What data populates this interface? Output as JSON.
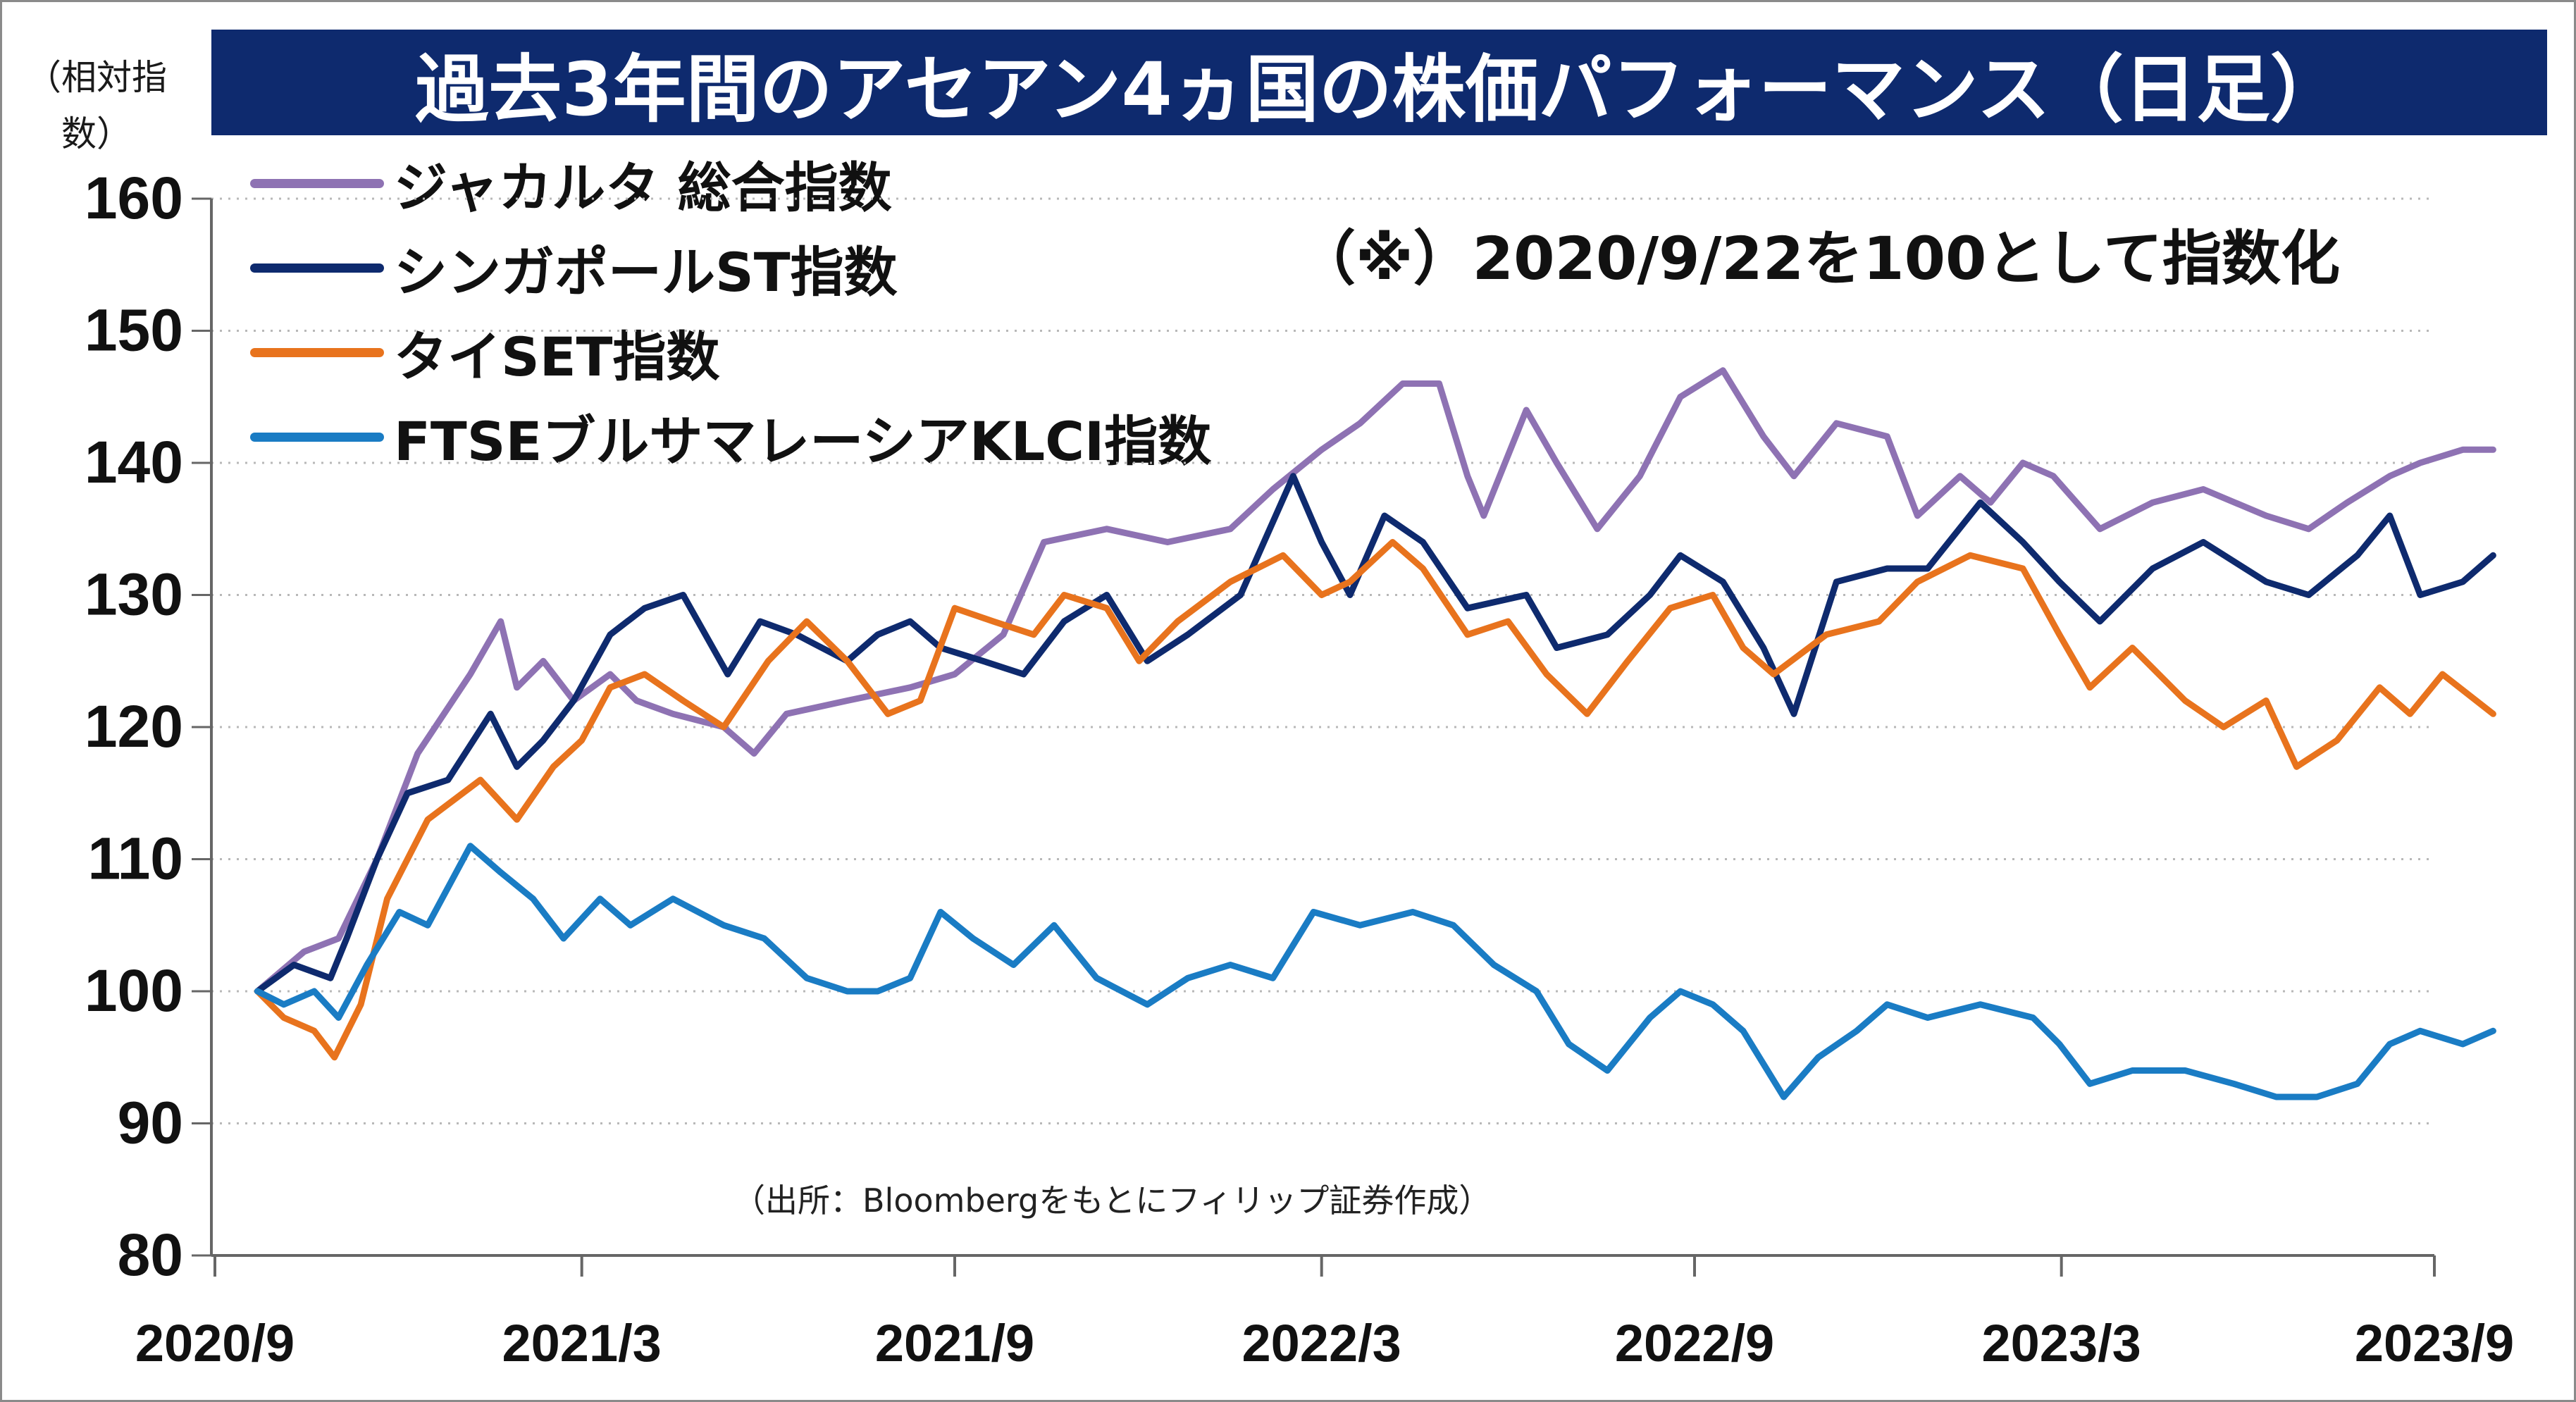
{
  "chart_data": {
    "type": "line",
    "title": "過去3年間のアセアン4ヵ国の株価パフォーマンス（日足）",
    "ylabel": "（相対指数）",
    "xlabel": "",
    "note": "（※）2020/9/22を100として指数化",
    "source": "（出所：Bloombergをもとにフィリップ証券作成）",
    "ylim": [
      80,
      160
    ],
    "yticks": [
      80,
      90,
      100,
      110,
      120,
      130,
      140,
      150,
      160
    ],
    "xlim": [
      "2020-09-22",
      "2023-09-30"
    ],
    "xticks": [
      {
        "date": "2020-09-01",
        "label": "2020/9"
      },
      {
        "date": "2021-03-01",
        "label": "2021/3"
      },
      {
        "date": "2021-09-01",
        "label": "2021/9"
      },
      {
        "date": "2022-03-01",
        "label": "2022/3"
      },
      {
        "date": "2022-09-01",
        "label": "2022/9"
      },
      {
        "date": "2023-03-01",
        "label": "2023/3"
      },
      {
        "date": "2023-09-01",
        "label": "2023/9"
      }
    ],
    "grid": true,
    "legend_position": "top-left",
    "series": [
      {
        "name": "ジャカルタ 総合指数",
        "color": "#8e72b3",
        "points": [
          [
            "2020-09-22",
            100
          ],
          [
            "2020-10-15",
            103
          ],
          [
            "2020-11-01",
            104
          ],
          [
            "2020-11-20",
            110
          ],
          [
            "2020-12-10",
            118
          ],
          [
            "2021-01-05",
            124
          ],
          [
            "2021-01-20",
            128
          ],
          [
            "2021-01-28",
            123
          ],
          [
            "2021-02-10",
            125
          ],
          [
            "2021-02-25",
            122
          ],
          [
            "2021-03-15",
            124
          ],
          [
            "2021-03-28",
            122
          ],
          [
            "2021-04-15",
            121
          ],
          [
            "2021-05-10",
            120
          ],
          [
            "2021-05-25",
            118
          ],
          [
            "2021-06-10",
            121
          ],
          [
            "2021-07-10",
            122
          ],
          [
            "2021-08-10",
            123
          ],
          [
            "2021-09-01",
            124
          ],
          [
            "2021-09-25",
            127
          ],
          [
            "2021-10-15",
            134
          ],
          [
            "2021-11-15",
            135
          ],
          [
            "2021-12-15",
            134
          ],
          [
            "2022-01-15",
            135
          ],
          [
            "2022-02-05",
            138
          ],
          [
            "2022-03-01",
            141
          ],
          [
            "2022-03-20",
            143
          ],
          [
            "2022-04-10",
            146
          ],
          [
            "2022-04-28",
            146
          ],
          [
            "2022-05-12",
            139
          ],
          [
            "2022-05-20",
            136
          ],
          [
            "2022-06-10",
            144
          ],
          [
            "2022-06-25",
            140
          ],
          [
            "2022-07-15",
            135
          ],
          [
            "2022-08-05",
            139
          ],
          [
            "2022-08-25",
            145
          ],
          [
            "2022-09-15",
            147
          ],
          [
            "2022-10-05",
            142
          ],
          [
            "2022-10-20",
            139
          ],
          [
            "2022-11-10",
            143
          ],
          [
            "2022-12-05",
            142
          ],
          [
            "2022-12-20",
            136
          ],
          [
            "2023-01-10",
            139
          ],
          [
            "2023-01-25",
            137
          ],
          [
            "2023-02-10",
            140
          ],
          [
            "2023-02-25",
            139
          ],
          [
            "2023-03-20",
            135
          ],
          [
            "2023-04-15",
            137
          ],
          [
            "2023-05-10",
            138
          ],
          [
            "2023-06-10",
            136
          ],
          [
            "2023-07-01",
            135
          ],
          [
            "2023-07-20",
            137
          ],
          [
            "2023-08-10",
            139
          ],
          [
            "2023-08-25",
            140
          ],
          [
            "2023-09-15",
            141
          ],
          [
            "2023-09-30",
            141
          ]
        ]
      },
      {
        "name": "シンガポールST指数",
        "color": "#0e2a6e",
        "points": [
          [
            "2020-09-22",
            100
          ],
          [
            "2020-10-10",
            102
          ],
          [
            "2020-10-28",
            101
          ],
          [
            "2020-11-05",
            104
          ],
          [
            "2020-11-20",
            110
          ],
          [
            "2020-12-05",
            115
          ],
          [
            "2020-12-25",
            116
          ],
          [
            "2021-01-15",
            121
          ],
          [
            "2021-01-28",
            117
          ],
          [
            "2021-02-10",
            119
          ],
          [
            "2021-02-25",
            122
          ],
          [
            "2021-03-15",
            127
          ],
          [
            "2021-04-01",
            129
          ],
          [
            "2021-04-20",
            130
          ],
          [
            "2021-05-12",
            124
          ],
          [
            "2021-05-28",
            128
          ],
          [
            "2021-06-15",
            127
          ],
          [
            "2021-07-10",
            125
          ],
          [
            "2021-07-25",
            127
          ],
          [
            "2021-08-10",
            128
          ],
          [
            "2021-08-25",
            126
          ],
          [
            "2021-09-15",
            125
          ],
          [
            "2021-10-05",
            124
          ],
          [
            "2021-10-25",
            128
          ],
          [
            "2021-11-15",
            130
          ],
          [
            "2021-12-05",
            125
          ],
          [
            "2021-12-25",
            127
          ],
          [
            "2022-01-20",
            130
          ],
          [
            "2022-02-15",
            139
          ],
          [
            "2022-03-01",
            134
          ],
          [
            "2022-03-15",
            130
          ],
          [
            "2022-04-01",
            136
          ],
          [
            "2022-04-20",
            134
          ],
          [
            "2022-05-12",
            129
          ],
          [
            "2022-06-10",
            130
          ],
          [
            "2022-06-25",
            126
          ],
          [
            "2022-07-20",
            127
          ],
          [
            "2022-08-10",
            130
          ],
          [
            "2022-08-25",
            133
          ],
          [
            "2022-09-15",
            131
          ],
          [
            "2022-10-05",
            126
          ],
          [
            "2022-10-20",
            121
          ],
          [
            "2022-11-10",
            131
          ],
          [
            "2022-12-05",
            132
          ],
          [
            "2022-12-25",
            132
          ],
          [
            "2023-01-20",
            137
          ],
          [
            "2023-02-10",
            134
          ],
          [
            "2023-02-28",
            131
          ],
          [
            "2023-03-20",
            128
          ],
          [
            "2023-04-15",
            132
          ],
          [
            "2023-05-10",
            134
          ],
          [
            "2023-06-10",
            131
          ],
          [
            "2023-07-01",
            130
          ],
          [
            "2023-07-25",
            133
          ],
          [
            "2023-08-10",
            136
          ],
          [
            "2023-08-25",
            130
          ],
          [
            "2023-09-15",
            131
          ],
          [
            "2023-09-30",
            133
          ]
        ]
      },
      {
        "name": "タイSET指数",
        "color": "#e8731d",
        "points": [
          [
            "2020-09-22",
            100
          ],
          [
            "2020-10-05",
            98
          ],
          [
            "2020-10-20",
            97
          ],
          [
            "2020-10-30",
            95
          ],
          [
            "2020-11-12",
            99
          ],
          [
            "2020-11-25",
            107
          ],
          [
            "2020-12-15",
            113
          ],
          [
            "2021-01-10",
            116
          ],
          [
            "2021-01-28",
            113
          ],
          [
            "2021-02-15",
            117
          ],
          [
            "2021-03-01",
            119
          ],
          [
            "2021-03-15",
            123
          ],
          [
            "2021-04-01",
            124
          ],
          [
            "2021-04-20",
            122
          ],
          [
            "2021-05-10",
            120
          ],
          [
            "2021-06-01",
            125
          ],
          [
            "2021-06-20",
            128
          ],
          [
            "2021-07-10",
            125
          ],
          [
            "2021-07-30",
            121
          ],
          [
            "2021-08-15",
            122
          ],
          [
            "2021-09-01",
            129
          ],
          [
            "2021-09-20",
            128
          ],
          [
            "2021-10-10",
            127
          ],
          [
            "2021-10-25",
            130
          ],
          [
            "2021-11-15",
            129
          ],
          [
            "2021-12-01",
            125
          ],
          [
            "2021-12-20",
            128
          ],
          [
            "2022-01-15",
            131
          ],
          [
            "2022-02-10",
            133
          ],
          [
            "2022-03-01",
            130
          ],
          [
            "2022-03-15",
            131
          ],
          [
            "2022-04-05",
            134
          ],
          [
            "2022-04-20",
            132
          ],
          [
            "2022-05-12",
            127
          ],
          [
            "2022-06-01",
            128
          ],
          [
            "2022-06-20",
            124
          ],
          [
            "2022-07-10",
            121
          ],
          [
            "2022-07-30",
            125
          ],
          [
            "2022-08-20",
            129
          ],
          [
            "2022-09-10",
            130
          ],
          [
            "2022-09-25",
            126
          ],
          [
            "2022-10-10",
            124
          ],
          [
            "2022-11-05",
            127
          ],
          [
            "2022-12-01",
            128
          ],
          [
            "2022-12-20",
            131
          ],
          [
            "2023-01-15",
            133
          ],
          [
            "2023-02-10",
            132
          ],
          [
            "2023-02-28",
            127
          ],
          [
            "2023-03-15",
            123
          ],
          [
            "2023-04-05",
            126
          ],
          [
            "2023-05-01",
            122
          ],
          [
            "2023-05-20",
            120
          ],
          [
            "2023-06-10",
            122
          ],
          [
            "2023-06-25",
            117
          ],
          [
            "2023-07-15",
            119
          ],
          [
            "2023-08-05",
            123
          ],
          [
            "2023-08-20",
            121
          ],
          [
            "2023-09-05",
            124
          ],
          [
            "2023-09-30",
            121
          ]
        ]
      },
      {
        "name": "FTSEブルサマレーシアKLCI指数",
        "color": "#1a7cc4",
        "points": [
          [
            "2020-09-22",
            100
          ],
          [
            "2020-10-05",
            99
          ],
          [
            "2020-10-20",
            100
          ],
          [
            "2020-11-01",
            98
          ],
          [
            "2020-11-15",
            102
          ],
          [
            "2020-12-01",
            106
          ],
          [
            "2020-12-15",
            105
          ],
          [
            "2021-01-05",
            111
          ],
          [
            "2021-01-20",
            109
          ],
          [
            "2021-02-05",
            107
          ],
          [
            "2021-02-20",
            104
          ],
          [
            "2021-03-10",
            107
          ],
          [
            "2021-03-25",
            105
          ],
          [
            "2021-04-15",
            107
          ],
          [
            "2021-05-10",
            105
          ],
          [
            "2021-05-30",
            104
          ],
          [
            "2021-06-20",
            101
          ],
          [
            "2021-07-10",
            100
          ],
          [
            "2021-07-25",
            100
          ],
          [
            "2021-08-10",
            101
          ],
          [
            "2021-08-25",
            106
          ],
          [
            "2021-09-10",
            104
          ],
          [
            "2021-09-30",
            102
          ],
          [
            "2021-10-20",
            105
          ],
          [
            "2021-11-10",
            101
          ],
          [
            "2021-12-05",
            99
          ],
          [
            "2021-12-25",
            101
          ],
          [
            "2022-01-15",
            102
          ],
          [
            "2022-02-05",
            101
          ],
          [
            "2022-02-25",
            106
          ],
          [
            "2022-03-20",
            105
          ],
          [
            "2022-04-15",
            106
          ],
          [
            "2022-05-05",
            105
          ],
          [
            "2022-05-25",
            102
          ],
          [
            "2022-06-15",
            100
          ],
          [
            "2022-07-01",
            96
          ],
          [
            "2022-07-20",
            94
          ],
          [
            "2022-08-10",
            98
          ],
          [
            "2022-08-25",
            100
          ],
          [
            "2022-09-10",
            99
          ],
          [
            "2022-09-25",
            97
          ],
          [
            "2022-10-15",
            92
          ],
          [
            "2022-11-01",
            95
          ],
          [
            "2022-11-20",
            97
          ],
          [
            "2022-12-05",
            99
          ],
          [
            "2022-12-25",
            98
          ],
          [
            "2023-01-20",
            99
          ],
          [
            "2023-02-15",
            98
          ],
          [
            "2023-02-28",
            96
          ],
          [
            "2023-03-15",
            93
          ],
          [
            "2023-04-05",
            94
          ],
          [
            "2023-05-01",
            94
          ],
          [
            "2023-05-25",
            93
          ],
          [
            "2023-06-15",
            92
          ],
          [
            "2023-07-05",
            92
          ],
          [
            "2023-07-25",
            93
          ],
          [
            "2023-08-10",
            96
          ],
          [
            "2023-08-25",
            97
          ],
          [
            "2023-09-15",
            96
          ],
          [
            "2023-09-30",
            97
          ]
        ]
      }
    ]
  }
}
